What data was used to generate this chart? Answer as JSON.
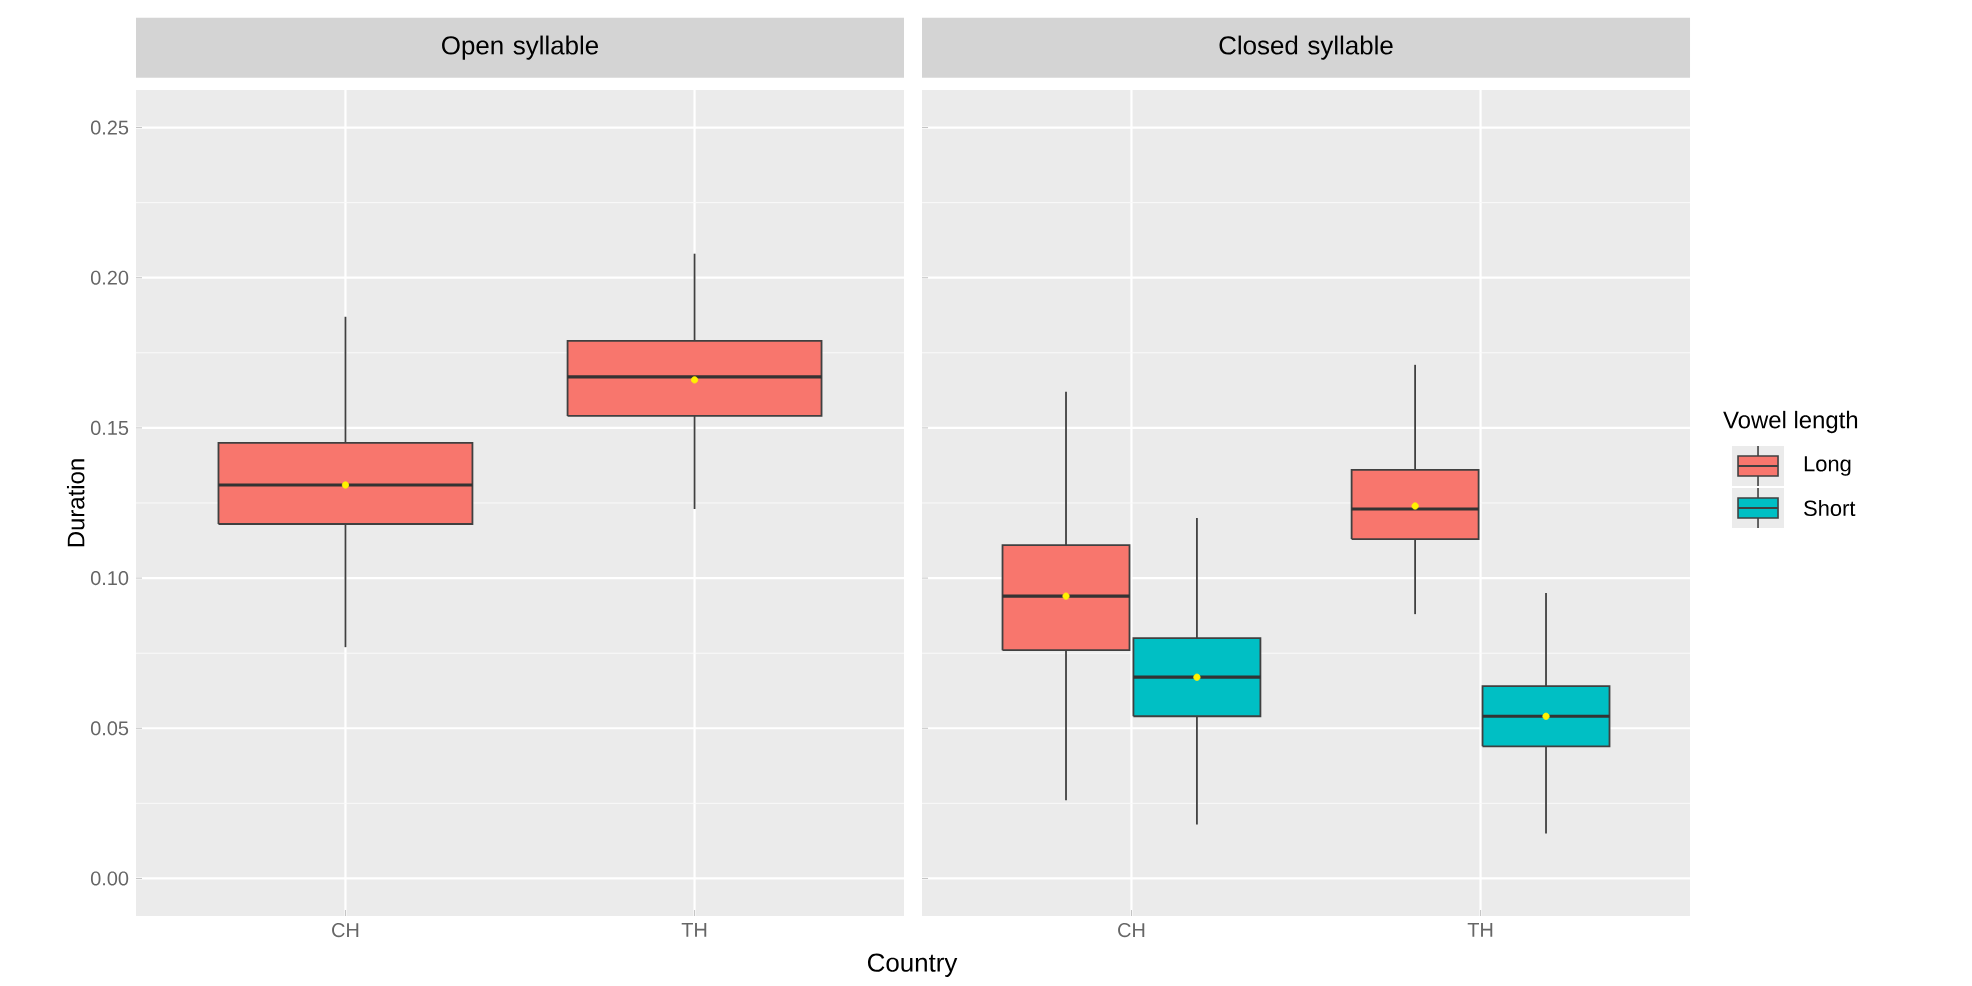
{
  "chart_data": [
    {
      "type": "box",
      "title": "Open syllable",
      "xlabel": "Country",
      "ylabel": "Duration",
      "categories": [
        "CH",
        "TH"
      ],
      "ylim": [
        -0.0125,
        0.2625
      ],
      "yticks": [
        {
          "value": 0,
          "label": "0.00"
        },
        {
          "value": 0.05,
          "label": "0.05"
        },
        {
          "value": 0.1,
          "label": "0.10"
        },
        {
          "value": 0.15,
          "label": "0.15"
        },
        {
          "value": 0.2,
          "label": "0.20"
        },
        {
          "value": 0.25,
          "label": "0.25"
        }
      ],
      "grid": true,
      "series": [
        {
          "color": "#f8766d",
          "boxes": [
            {
              "low": 0.077,
              "q1": 0.118,
              "median": 0.131,
              "q3": 0.145,
              "high": 0.187,
              "mean": 0.131
            },
            {
              "low": 0.123,
              "q1": 0.154,
              "median": 0.167,
              "q3": 0.179,
              "high": 0.208,
              "mean": 0.166
            }
          ]
        }
      ]
    },
    {
      "type": "box",
      "title": "Closed syllable",
      "categories": [
        "CH",
        "TH"
      ],
      "ylim": [
        -0.0125,
        0.2625
      ],
      "yticks": [
        0,
        0.05,
        0.1,
        0.15,
        0.2,
        0.25
      ],
      "grid": true,
      "tick_labels": "x",
      "legend": "right",
      "legend_title": "Vowel length",
      "series": [
        {
          "name": "Long",
          "color": "#f8766d",
          "boxes": [
            {
              "low": 0.026,
              "q1": 0.076,
              "median": 0.094,
              "q3": 0.111,
              "high": 0.162,
              "mean": 0.094
            },
            {
              "low": 0.088,
              "q1": 0.113,
              "median": 0.123,
              "q3": 0.136,
              "high": 0.171,
              "mean": 0.124
            }
          ]
        },
        {
          "name": "Short",
          "color": "#00bfc4",
          "boxes": [
            {
              "low": 0.018,
              "q1": 0.054,
              "median": 0.067,
              "q3": 0.08,
              "high": 0.12,
              "mean": 0.067
            },
            {
              "low": 0.015,
              "q1": 0.044,
              "median": 0.054,
              "q3": 0.064,
              "high": 0.095,
              "mean": 0.054
            }
          ]
        }
      ]
    }
  ]
}
